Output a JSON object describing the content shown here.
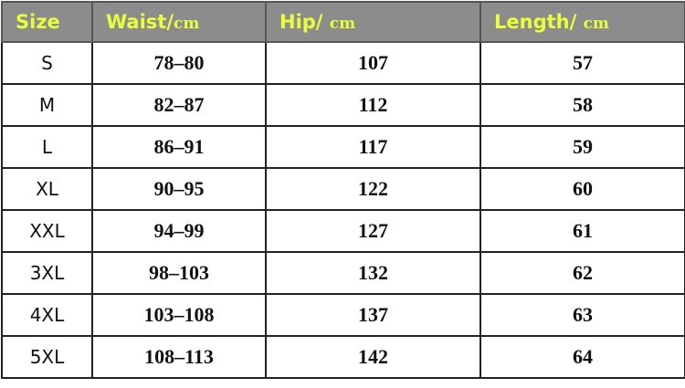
{
  "table": {
    "header": [
      {
        "label": "Size"
      },
      {
        "label": "Waist/",
        "unit": "cm"
      },
      {
        "label": "Hip/ ",
        "unit": "cm"
      },
      {
        "label": "Length/ ",
        "unit": "cm"
      }
    ],
    "rows": [
      [
        "S",
        "78–80",
        "107",
        "57"
      ],
      [
        "M",
        "82–87",
        "112",
        "58"
      ],
      [
        "L",
        "86–91",
        "117",
        "59"
      ],
      [
        "XL",
        "90–95",
        "122",
        "60"
      ],
      [
        "XXL",
        "94–99",
        "127",
        "61"
      ],
      [
        "3XL",
        "98–103",
        "132",
        "62"
      ],
      [
        "4XL",
        "103–108",
        "137",
        "63"
      ],
      [
        "5XL",
        "108–113",
        "142",
        "64"
      ]
    ]
  }
}
